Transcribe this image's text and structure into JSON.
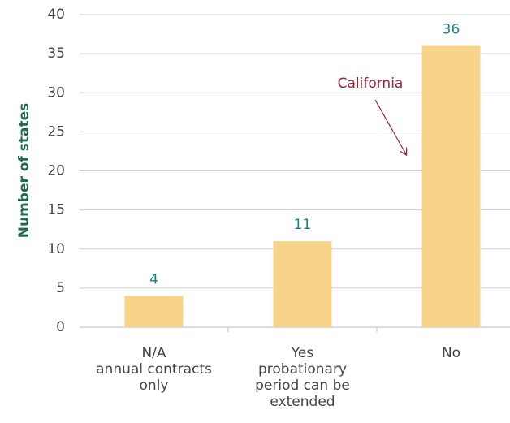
{
  "chart_data": {
    "type": "bar",
    "y_label": "Number of states",
    "categories": [
      "N/A\nannual contracts\nonly",
      "Yes\nprobationary\nperiod can be\nextended",
      "No"
    ],
    "values": [
      4,
      11,
      36
    ],
    "color": "#f8d48a",
    "value_label_color": "#1b7c8c",
    "ylim": [
      0,
      40
    ],
    "yticks": [
      0,
      5,
      10,
      15,
      20,
      25,
      30,
      35,
      40
    ],
    "grid": true,
    "annotation": "California"
  }
}
